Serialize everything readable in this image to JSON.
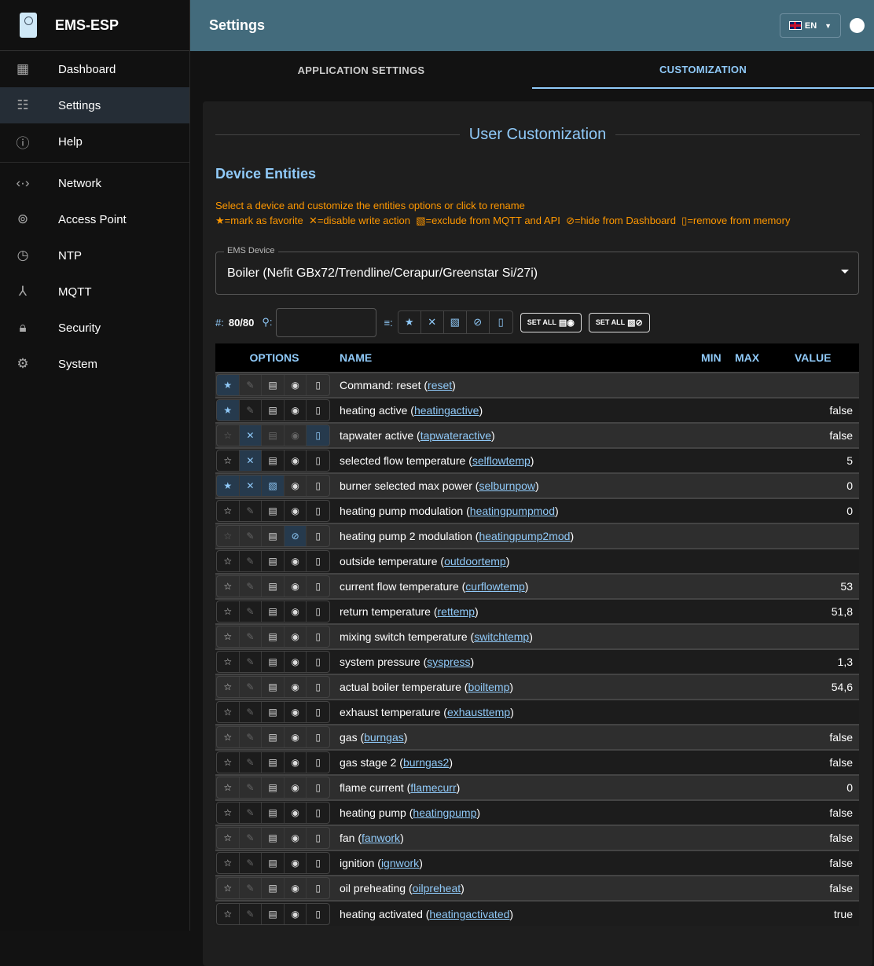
{
  "app": {
    "title": "EMS-ESP"
  },
  "sidebar": {
    "items": [
      {
        "label": "Dashboard",
        "icon": "dashboard-icon",
        "glyph": "▦"
      },
      {
        "label": "Settings",
        "icon": "tune-icon",
        "glyph": "☷"
      },
      {
        "label": "Help",
        "icon": "info-icon",
        "glyph": "ⓘ"
      },
      {
        "label": "Network",
        "icon": "network-icon",
        "glyph": "‹·›"
      },
      {
        "label": "Access Point",
        "icon": "access-point-icon",
        "glyph": "⊚"
      },
      {
        "label": "NTP",
        "icon": "clock-icon",
        "glyph": "◷"
      },
      {
        "label": "MQTT",
        "icon": "hub-icon",
        "glyph": "⅄"
      },
      {
        "label": "Security",
        "icon": "lock-icon",
        "glyph": "🔒︎"
      },
      {
        "label": "System",
        "icon": "gear-icon",
        "glyph": "⚙"
      }
    ]
  },
  "header": {
    "title": "Settings",
    "language": "EN"
  },
  "tabs": [
    {
      "label": "APPLICATION SETTINGS"
    },
    {
      "label": "CUSTOMIZATION"
    }
  ],
  "main": {
    "title": "User Customization",
    "section": "Device Entities",
    "help_line1": "Select a device and customize the entities options or click to rename",
    "legend": "★=mark as favorite  ✕=disable write action  ▧=exclude from MQTT and API  ⊘=hide from Dashboard  ▯=remove from memory",
    "device_label": "EMS Device",
    "device_value": "Boiler (Nefit GBx72/Trendline/Cerapur/Greenstar Si/27i)",
    "count_label": "#:",
    "count": "80/80",
    "search_placeholder": "",
    "set_all_1": "SET ALL",
    "set_all_2": "SET ALL"
  },
  "table": {
    "headers": {
      "options": "OPTIONS",
      "name": "NAME",
      "min": "MIN",
      "max": "MAX",
      "value": "VALUE"
    },
    "rows": [
      {
        "name": "Command: reset",
        "id": "reset",
        "value": "",
        "fav": true
      },
      {
        "name": "heating active",
        "id": "heatingactive",
        "value": "false",
        "fav": true
      },
      {
        "name": "tapwater active",
        "id": "tapwateractive",
        "value": "false",
        "nowrite": true,
        "remove": true,
        "dim": true
      },
      {
        "name": "selected flow temperature",
        "id": "selflowtemp",
        "value": "5",
        "nowrite": true
      },
      {
        "name": "burner selected max power",
        "id": "selburnpow",
        "value": "0",
        "fav": true,
        "nowrite": true,
        "exclude": true
      },
      {
        "name": "heating pump modulation",
        "id": "heatingpumpmod",
        "value": "0"
      },
      {
        "name": "heating pump 2 modulation",
        "id": "heatingpump2mod",
        "value": "",
        "hide": true,
        "dimstar": true
      },
      {
        "name": "outside temperature",
        "id": "outdoortemp",
        "value": ""
      },
      {
        "name": "current flow temperature",
        "id": "curflowtemp",
        "value": "53"
      },
      {
        "name": "return temperature",
        "id": "rettemp",
        "value": "51,8"
      },
      {
        "name": "mixing switch temperature",
        "id": "switchtemp",
        "value": ""
      },
      {
        "name": "system pressure",
        "id": "syspress",
        "value": "1,3"
      },
      {
        "name": "actual boiler temperature",
        "id": "boiltemp",
        "value": "54,6"
      },
      {
        "name": "exhaust temperature",
        "id": "exhausttemp",
        "value": ""
      },
      {
        "name": "gas",
        "id": "burngas",
        "value": "false"
      },
      {
        "name": "gas stage 2",
        "id": "burngas2",
        "value": "false"
      },
      {
        "name": "flame current",
        "id": "flamecurr",
        "value": "0"
      },
      {
        "name": "heating pump",
        "id": "heatingpump",
        "value": "false"
      },
      {
        "name": "fan",
        "id": "fanwork",
        "value": "false"
      },
      {
        "name": "ignition",
        "id": "ignwork",
        "value": "false"
      },
      {
        "name": "oil preheating",
        "id": "oilpreheat",
        "value": "false"
      },
      {
        "name": "heating activated",
        "id": "heatingactivated",
        "value": "true"
      }
    ]
  },
  "colors": {
    "accent": "#90caf9",
    "header": "#436b7c",
    "help": "#ff9800"
  }
}
